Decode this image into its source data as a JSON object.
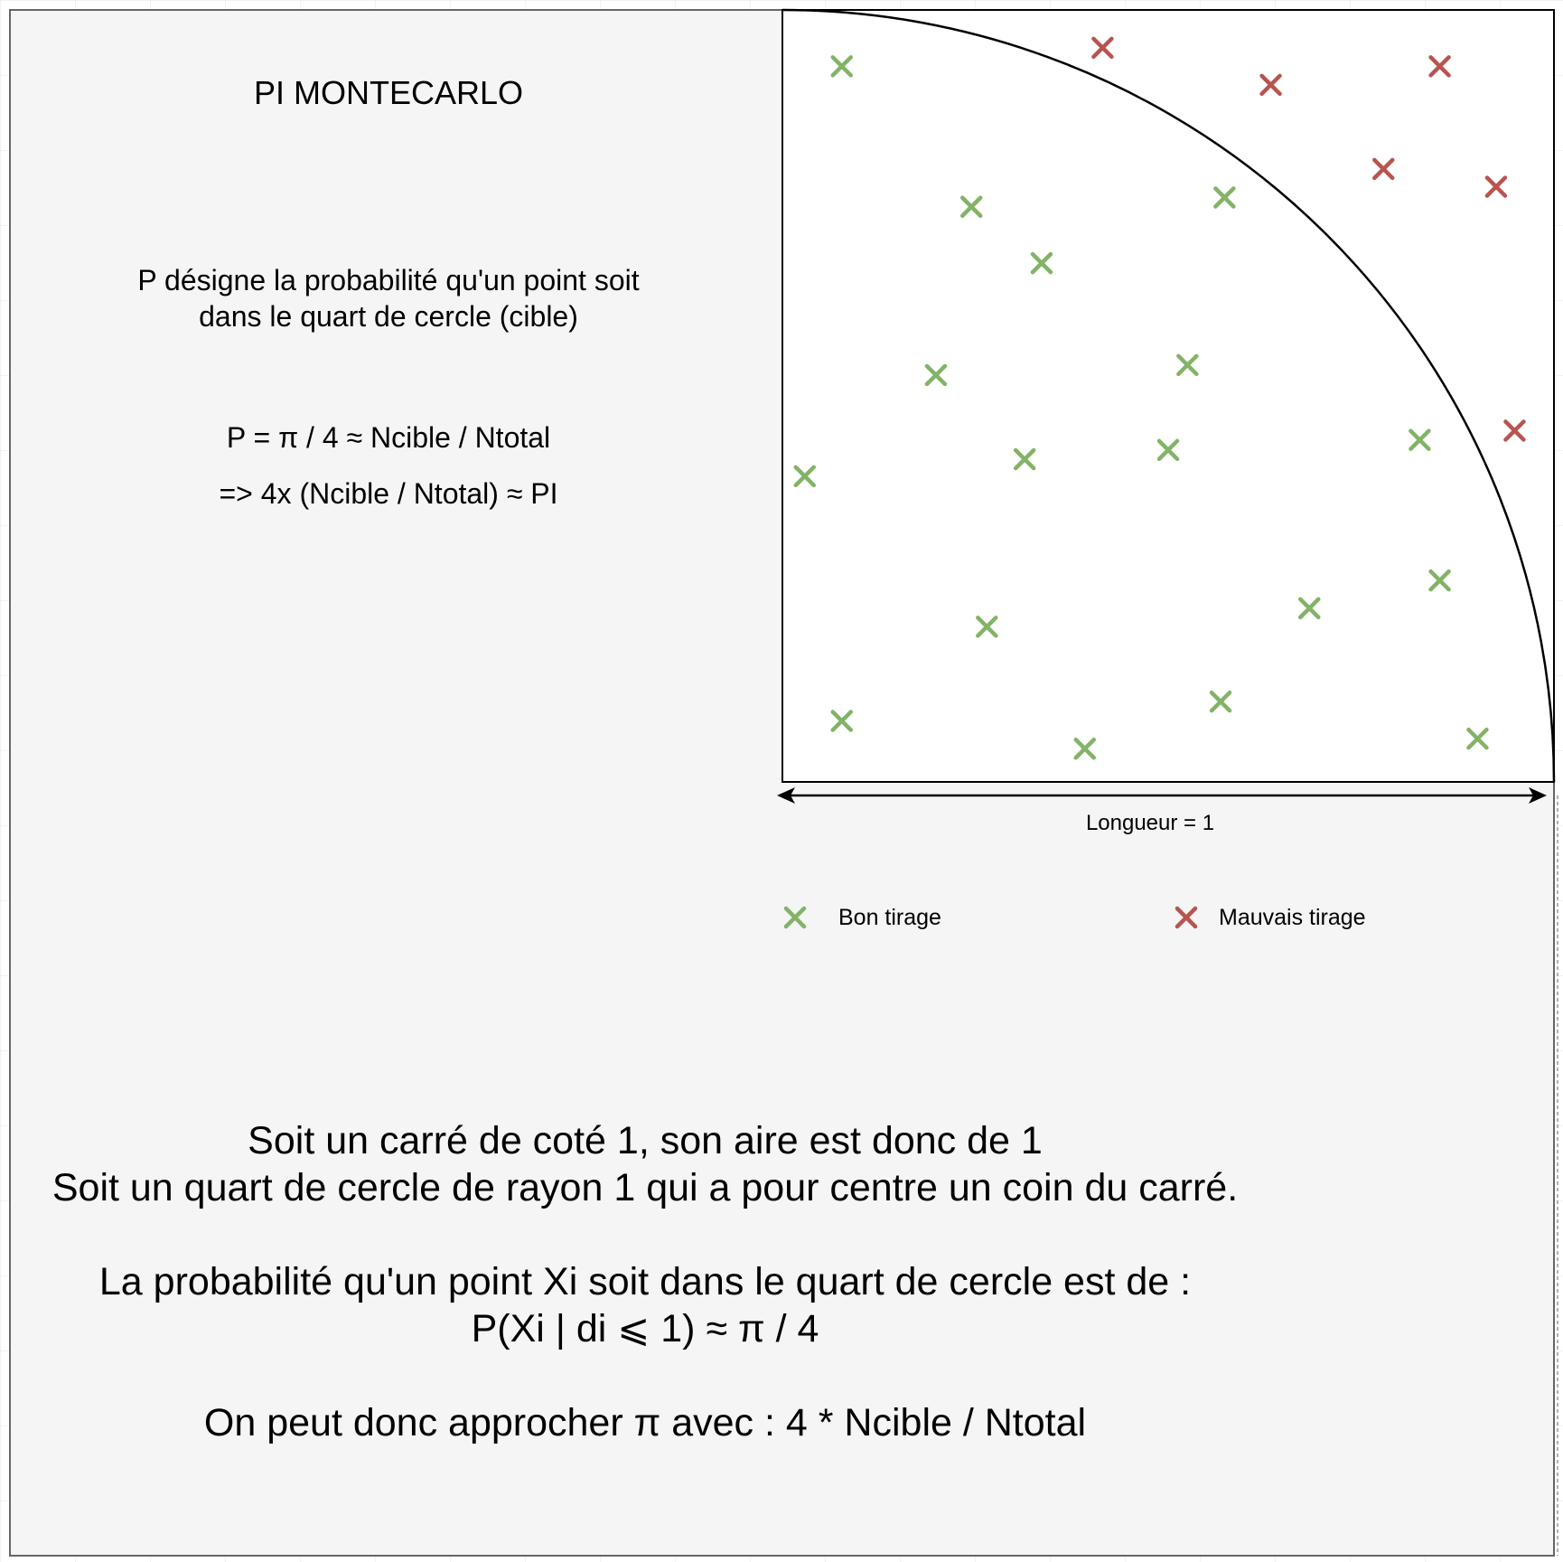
{
  "title": "PI MONTECARLO",
  "intro_lines": [
    "P désigne la probabilité qu'un point soit",
    "dans le quart de cercle (cible)"
  ],
  "formula_1": "P = π / 4 ≈ Ncible / Ntotal",
  "formula_2": "=> 4x (Ncible / Ntotal) ≈ PI",
  "axis_label": "Longueur = 1",
  "legend": {
    "good_label": "Bon tirage",
    "bad_label": "Mauvais tirage",
    "good_color": "#82b366",
    "bad_color": "#b85450"
  },
  "explanation_lines": [
    "Soit un carré de coté 1, son aire est donc de 1",
    "Soit un quart de cercle de rayon 1 qui a pour centre un coin du carré.",
    "",
    "La probabilité qu'un point Xi soit dans le quart de cercle est de :",
    "P(Xi | di ⩽ 1) ≈ π / 4",
    "",
    "On peut donc approcher π avec : 4 * Ncible / Ntotal"
  ],
  "points": {
    "good": [
      [
        0.077,
        0.927
      ],
      [
        0.245,
        0.745
      ],
      [
        0.336,
        0.672
      ],
      [
        0.199,
        0.527
      ],
      [
        0.573,
        0.757
      ],
      [
        0.525,
        0.54
      ],
      [
        0.029,
        0.396
      ],
      [
        0.314,
        0.418
      ],
      [
        0.5,
        0.43
      ],
      [
        0.826,
        0.443
      ],
      [
        0.265,
        0.201
      ],
      [
        0.683,
        0.225
      ],
      [
        0.852,
        0.261
      ],
      [
        0.077,
        0.079
      ],
      [
        0.392,
        0.043
      ],
      [
        0.568,
        0.104
      ],
      [
        0.901,
        0.056
      ]
    ],
    "bad": [
      [
        0.415,
        0.951
      ],
      [
        0.633,
        0.903
      ],
      [
        0.852,
        0.927
      ],
      [
        0.779,
        0.794
      ],
      [
        0.925,
        0.771
      ],
      [
        0.949,
        0.455
      ]
    ]
  }
}
